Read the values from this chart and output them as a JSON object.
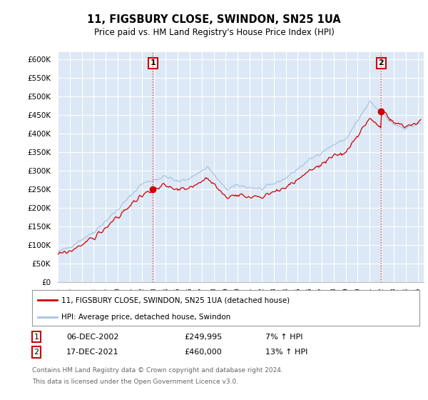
{
  "title": "11, FIGSBURY CLOSE, SWINDON, SN25 1UA",
  "subtitle": "Price paid vs. HM Land Registry's House Price Index (HPI)",
  "ylabel_ticks": [
    "£0",
    "£50K",
    "£100K",
    "£150K",
    "£200K",
    "£250K",
    "£300K",
    "£350K",
    "£400K",
    "£450K",
    "£500K",
    "£550K",
    "£600K"
  ],
  "ylim": [
    0,
    620000
  ],
  "yticks": [
    0,
    50000,
    100000,
    150000,
    200000,
    250000,
    300000,
    350000,
    400000,
    450000,
    500000,
    550000,
    600000
  ],
  "hpi_color": "#aac4e0",
  "price_color": "#cc0000",
  "plot_bg_color": "#dce8f5",
  "sale1_x": 2002.92,
  "sale1_y": 249995,
  "sale2_x": 2021.96,
  "sale2_y": 460000,
  "vline_color": "#cc0000",
  "grid_color": "#ffffff",
  "background_color": "#ffffff",
  "legend_line1": "11, FIGSBURY CLOSE, SWINDON, SN25 1UA (detached house)",
  "legend_line2": "HPI: Average price, detached house, Swindon",
  "table_row1": [
    "1",
    "06-DEC-2002",
    "£249,995",
    "7% ↑ HPI"
  ],
  "table_row2": [
    "2",
    "17-DEC-2021",
    "£460,000",
    "13% ↑ HPI"
  ],
  "footer": "Contains HM Land Registry data © Crown copyright and database right 2024.\nThis data is licensed under the Open Government Licence v3.0.",
  "xmin": 1995.0,
  "xmax": 2025.5
}
